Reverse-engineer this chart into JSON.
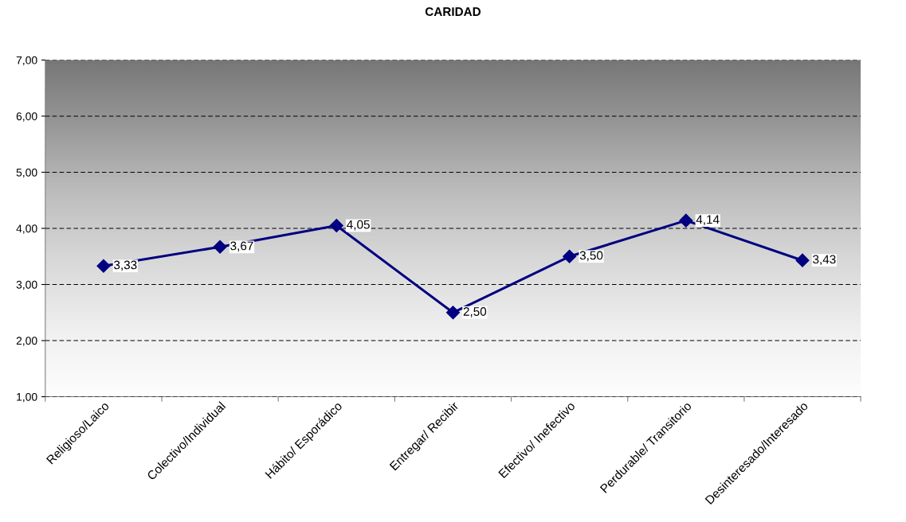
{
  "chart_data": {
    "type": "line",
    "title": "CARIDAD",
    "categories": [
      "Religioso/Laico",
      "Colectivo/Individual",
      "Hábito/ Esporádico",
      "Entregar/ Recibir",
      "Efectivo/ Inefectivo",
      "Perdurable/ Transitorio",
      "Desinteresado/Interesado"
    ],
    "series": [
      {
        "color": "#000080",
        "values": [
          3.33,
          3.67,
          4.05,
          2.5,
          3.5,
          4.14,
          3.43
        ],
        "value_labels": [
          "3,33",
          "3,67",
          "4,05",
          "2,50",
          "3,50",
          "4,14",
          "3,43"
        ]
      }
    ],
    "ylim": [
      1,
      7
    ],
    "yticks": [
      {
        "value": 1,
        "label": "1,00"
      },
      {
        "value": 2,
        "label": "2,00"
      },
      {
        "value": 3,
        "label": "3,00"
      },
      {
        "value": 4,
        "label": "4,00"
      },
      {
        "value": 5,
        "label": "5,00"
      },
      {
        "value": 6,
        "label": "6,00"
      },
      {
        "value": 7,
        "label": "7,00"
      }
    ],
    "grid": "y",
    "marker": "diamond",
    "line_style": "solid",
    "legend": false
  }
}
